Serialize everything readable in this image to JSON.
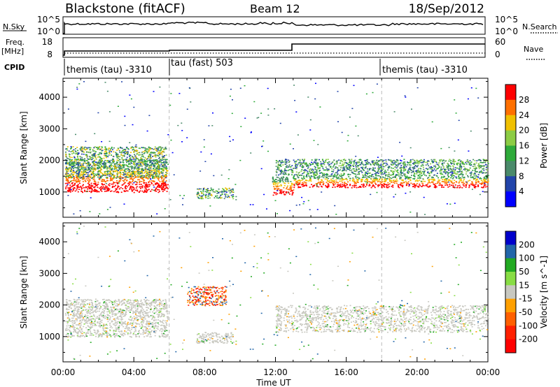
{
  "header": {
    "station": "Blackstone (fitACF)",
    "beam": "Beam 12",
    "date": "18/Sep/2012"
  },
  "strips": {
    "nsky_label": "N.Sky",
    "nsky_ticks": [
      "10^5",
      "10^0"
    ],
    "nsearch_label": "N.Search",
    "nsearch_ticks": [
      "10^5",
      "10^0"
    ],
    "freq_label": "Freq.",
    "freq_unit": "[MHz]",
    "freq_ticks": [
      "18",
      "8"
    ],
    "nave_label": "Nave",
    "nave_ticks": [
      "60",
      "0"
    ],
    "cpid_label": "CPID",
    "cpid_segments": [
      {
        "label": "themis (tau) -3310",
        "start_hour": 0
      },
      {
        "label": "tau (fast) 503",
        "start_hour": 6
      },
      {
        "label": "themis (tau) -3310",
        "start_hour": 18
      }
    ]
  },
  "chart_data": [
    {
      "type": "heatmap",
      "panel": "power",
      "xlabel": "",
      "ylabel": "Slant Range [km]",
      "x_ticks": [
        "00:00",
        "04:00",
        "08:00",
        "12:00",
        "16:00",
        "20:00",
        "00:00"
      ],
      "xlim_hours": [
        0,
        24
      ],
      "y_ticks": [
        1000,
        2000,
        3000,
        4000
      ],
      "ylim": [
        200,
        4600
      ],
      "colorbar_label": "Power [dB]",
      "colorbar_ticks": [
        4,
        8,
        12,
        16,
        20,
        24,
        28
      ],
      "colorbar_range": [
        0,
        30
      ],
      "colorbar_colors": [
        "#0000ff",
        "#2244aa",
        "#4a8a6a",
        "#2eaa3a",
        "#8ccc44",
        "#f0c000",
        "#ff7000",
        "#ff0000"
      ],
      "echo_bands": [
        {
          "start_hour": 0.1,
          "end_hour": 5.9,
          "range_start_km": 1000,
          "range_end_km": 2050,
          "level": "strong"
        },
        {
          "start_hour": 0.1,
          "end_hour": 5.8,
          "range_start_km": 1450,
          "range_end_km": 2450,
          "level": "medium"
        },
        {
          "start_hour": 7.5,
          "end_hour": 9.6,
          "range_start_km": 800,
          "range_end_km": 1150,
          "level": "medium"
        },
        {
          "start_hour": 11.8,
          "end_hour": 13.0,
          "range_start_km": 900,
          "range_end_km": 1500,
          "level": "strong"
        },
        {
          "start_hour": 13.0,
          "end_hour": 24.0,
          "range_start_km": 1150,
          "range_end_km": 1550,
          "level": "strong"
        },
        {
          "start_hour": 12.0,
          "end_hour": 24.0,
          "range_start_km": 1550,
          "range_end_km": 2050,
          "level": "weak"
        }
      ]
    },
    {
      "type": "heatmap",
      "panel": "velocity",
      "xlabel": "Time UT",
      "ylabel": "Slant Range [km]",
      "x_ticks": [
        "00:00",
        "04:00",
        "08:00",
        "12:00",
        "16:00",
        "20:00",
        "00:00"
      ],
      "xlim_hours": [
        0,
        24
      ],
      "y_ticks": [
        1000,
        2000,
        3000,
        4000
      ],
      "ylim": [
        200,
        4600
      ],
      "colorbar_label": "Velocity [m s^-1]",
      "colorbar_ticks": [
        200,
        100,
        50,
        15,
        -15,
        -50,
        -100,
        -200
      ],
      "colorbar_colors": [
        "#0000cc",
        "#2266aa",
        "#22aa22",
        "#88dd44",
        "#c8c8c0",
        "#ffa000",
        "#ff6000",
        "#ff2000",
        "#ff0000"
      ],
      "echo_bands": [
        {
          "start_hour": 0.1,
          "end_hour": 5.9,
          "range_start_km": 1000,
          "range_end_km": 2200,
          "level": "ground"
        },
        {
          "start_hour": 7.5,
          "end_hour": 9.6,
          "range_start_km": 800,
          "range_end_km": 1150,
          "level": "ground"
        },
        {
          "start_hour": 7.0,
          "end_hour": 9.2,
          "range_start_km": 2000,
          "range_end_km": 2600,
          "level": "negative"
        },
        {
          "start_hour": 12.0,
          "end_hour": 24.0,
          "range_start_km": 1150,
          "range_end_km": 2000,
          "level": "ground"
        }
      ]
    }
  ]
}
